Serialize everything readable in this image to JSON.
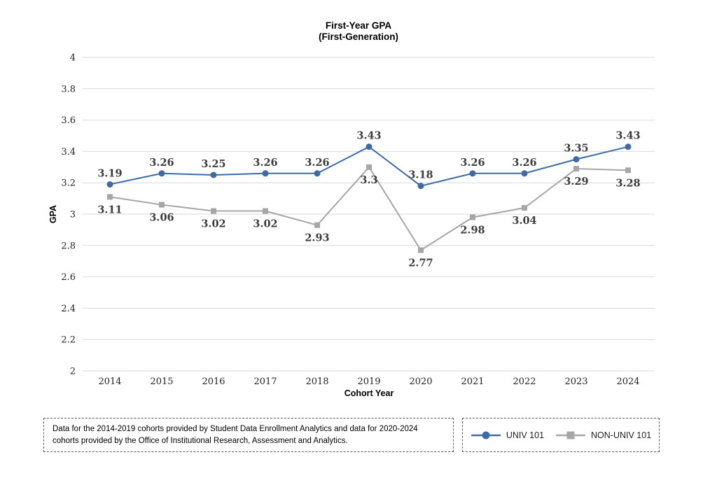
{
  "title": {
    "line1": "First-Year GPA",
    "line2": "(First-Generation)"
  },
  "footnote": {
    "text": "Data for the 2014-2019 cohorts provided by Student Data Enrollment Analytics and data for 2020-2024 cohorts provided by the Office of Institutional Research, Assessment and Analytics."
  },
  "legend": {
    "position": "bottom-right",
    "items": [
      {
        "label": "UNIV 101",
        "marker": "circle",
        "color": "#3d6ba5"
      },
      {
        "label": "NON-UNIV 101",
        "marker": "square",
        "color": "#a6a6a6"
      }
    ]
  },
  "colors": {
    "univ_blue": "#3d6ba5",
    "non_univ_gray": "#a6a6a6",
    "gridline": "#d9d9d9",
    "data_label": "#3c3c3c"
  },
  "chart_data": {
    "type": "line",
    "title": "First-Year GPA (First-Generation)",
    "xlabel": "Cohort Year",
    "ylabel": "GPA",
    "categories": [
      "2014",
      "2015",
      "2016",
      "2017",
      "2018",
      "2019",
      "2020",
      "2021",
      "2022",
      "2023",
      "2024"
    ],
    "ylim": [
      2,
      4
    ],
    "ytick_step": 0.2,
    "yticks": [
      "2",
      "2.2",
      "2.4",
      "2.6",
      "2.8",
      "3",
      "3.2",
      "3.4",
      "3.6",
      "3.8",
      "4"
    ],
    "grid": true,
    "legend_position": "bottom-right",
    "series": [
      {
        "name": "UNIV 101",
        "color": "#3d6ba5",
        "marker": "circle",
        "label_position": "above",
        "values": [
          3.19,
          3.26,
          3.25,
          3.26,
          3.26,
          3.43,
          3.18,
          3.26,
          3.26,
          3.35,
          3.43
        ],
        "labels": [
          "3.19",
          "3.26",
          "3.25",
          "3.26",
          "3.26",
          "3.43",
          "3.18",
          "3.26",
          "3.26",
          "3.35",
          "3.43"
        ]
      },
      {
        "name": "NON-UNIV 101",
        "color": "#a6a6a6",
        "marker": "square",
        "label_position": "below",
        "values": [
          3.11,
          3.06,
          3.02,
          3.02,
          2.93,
          3.3,
          2.77,
          2.98,
          3.04,
          3.29,
          3.28
        ],
        "labels": [
          "3.11",
          "3.06",
          "3.02",
          "3.02",
          "2.93",
          "3.3",
          "2.77",
          "2.98",
          "3.04",
          "3.29",
          "3.28"
        ]
      }
    ]
  }
}
